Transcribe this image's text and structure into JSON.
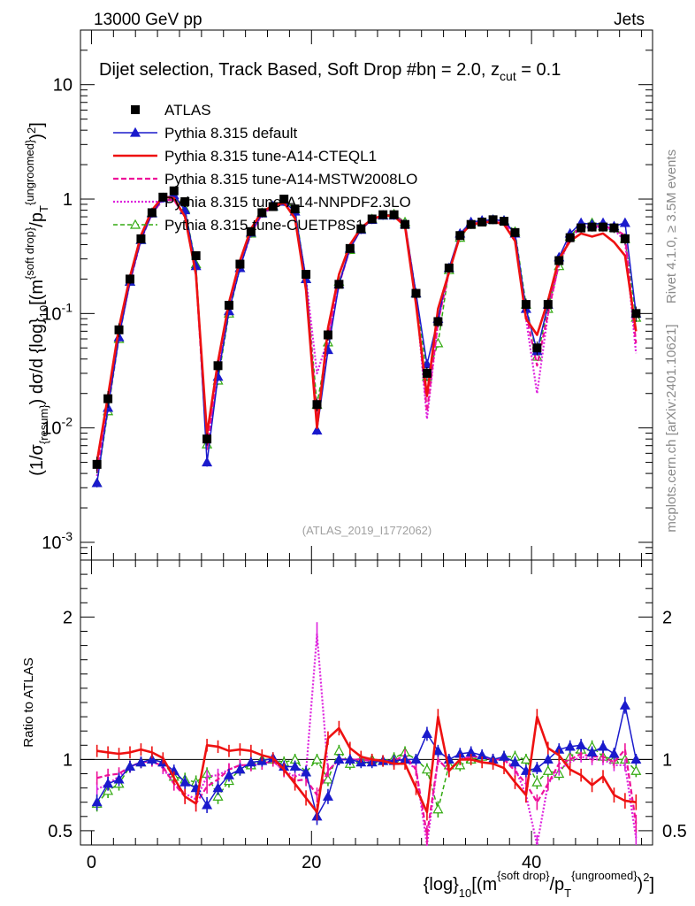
{
  "header": {
    "left": "13000 GeV pp",
    "right": "Jets"
  },
  "side_labels": {
    "rivet": "Rivet 4.1.0, ≥ 3.5M events",
    "mcplots": "mcplots.cern.ch [arXiv:2401.10621]"
  },
  "colors": {
    "atlas": "#000000",
    "default": "#1a1acc",
    "cteql1": "#ee1111",
    "mstw": "#ee1199",
    "nnpdf": "#dd22dd",
    "cuetp": "#33aa11"
  },
  "chart_data": [
    {
      "type": "line",
      "title": "Dijet selection, Track Based, Soft Drop #bη = 2.0, z_cut = 0.1",
      "title_text": "Dijet selection, Track Based, Soft Drop #b",
      "title_beta": "η = 2.0, z",
      "title_sub": "cut",
      "title_end": " = 0.1",
      "watermark": "(ATLAS_2019_I1772062)",
      "ylabel": "(1/σ{resum}) dσ/d {log}10[(m{soft drop}/pT{ungroomed})2]",
      "ylabel_parts": [
        "(1/σ",
        "{resum}",
        ") dσ/d {log}",
        "10",
        "[(m",
        "{soft drop}",
        "/p",
        "T",
        "{ungroomed}",
        ")",
        "2",
        "]"
      ],
      "yscale": "log",
      "ylim": [
        0.0007,
        30
      ],
      "yticks": [
        {
          "value": 0.001,
          "base": "10",
          "exp": "-3"
        },
        {
          "value": 0.01,
          "base": "10",
          "exp": "-2"
        },
        {
          "value": 0.1,
          "base": "10",
          "exp": "-1"
        },
        {
          "value": 1,
          "base": "1",
          "exp": ""
        },
        {
          "value": 10,
          "base": "10",
          "exp": ""
        }
      ],
      "xlim": [
        -1,
        51
      ],
      "legend": [
        {
          "key": "atlas",
          "label": "ATLAS"
        },
        {
          "key": "default",
          "label": "Pythia 8.315 default"
        },
        {
          "key": "cteql1",
          "label": "Pythia 8.315 tune-A14-CTEQL1"
        },
        {
          "key": "mstw",
          "label": "Pythia 8.315 tune-A14-MSTW2008LO"
        },
        {
          "key": "nnpdf",
          "label": "Pythia 8.315 tune-A14-NNPDF2.3LO"
        },
        {
          "key": "cuetp",
          "label": "Pythia 8.315 tune-CUETP8S1"
        }
      ],
      "x": [
        0.5,
        1.5,
        2.5,
        3.5,
        4.5,
        5.5,
        6.5,
        7.5,
        8.5,
        9.5,
        10.5,
        11.5,
        12.5,
        13.5,
        14.5,
        15.5,
        16.5,
        17.5,
        18.5,
        19.5,
        20.5,
        21.5,
        22.5,
        23.5,
        24.5,
        25.5,
        26.5,
        27.5,
        28.5,
        29.5,
        30.5,
        31.5,
        32.5,
        33.5,
        34.5,
        35.5,
        36.5,
        37.5,
        38.5,
        39.5,
        40.5,
        41.5,
        42.5,
        43.5,
        44.5,
        45.5,
        46.5,
        47.5,
        48.5,
        49.5
      ],
      "atlas": [
        0.0048,
        0.018,
        0.072,
        0.2,
        0.45,
        0.76,
        1.04,
        1.18,
        0.95,
        0.32,
        0.008,
        0.035,
        0.118,
        0.27,
        0.52,
        0.76,
        0.86,
        1.0,
        0.82,
        0.22,
        0.016,
        0.065,
        0.18,
        0.37,
        0.55,
        0.67,
        0.73,
        0.73,
        0.6,
        0.15,
        0.03,
        0.085,
        0.25,
        0.48,
        0.6,
        0.63,
        0.66,
        0.64,
        0.51,
        0.12,
        0.05,
        0.12,
        0.29,
        0.46,
        0.56,
        0.57,
        0.57,
        0.56,
        0.45,
        0.1
      ],
      "atlas_err": [
        0.0008,
        0.003,
        0.01,
        0.02,
        0.04,
        0.06,
        0.08,
        0.09,
        0.07,
        0.03,
        0.001,
        0.004,
        0.012,
        0.025,
        0.045,
        0.06,
        0.07,
        0.08,
        0.07,
        0.02,
        0.002,
        0.007,
        0.016,
        0.03,
        0.045,
        0.05,
        0.055,
        0.055,
        0.05,
        0.015,
        0.004,
        0.009,
        0.022,
        0.04,
        0.05,
        0.05,
        0.055,
        0.055,
        0.045,
        0.015,
        0.007,
        0.015,
        0.03,
        0.045,
        0.05,
        0.05,
        0.05,
        0.055,
        0.05,
        0.015
      ],
      "series": [
        {
          "key": "default",
          "marker": "triangle",
          "values": [
            0.0033,
            0.015,
            0.062,
            0.19,
            0.44,
            0.75,
            1.02,
            1.08,
            0.8,
            0.26,
            0.005,
            0.028,
            0.105,
            0.25,
            0.51,
            0.75,
            0.87,
            0.95,
            0.78,
            0.2,
            0.0095,
            0.048,
            0.18,
            0.37,
            0.54,
            0.66,
            0.72,
            0.72,
            0.6,
            0.15,
            0.036,
            0.09,
            0.25,
            0.5,
            0.63,
            0.65,
            0.66,
            0.65,
            0.5,
            0.11,
            0.047,
            0.12,
            0.31,
            0.5,
            0.62,
            0.6,
            0.62,
            0.58,
            0.62,
            0.1
          ]
        },
        {
          "key": "cteql1",
          "marker": "none",
          "values": [
            0.0051,
            0.019,
            0.075,
            0.21,
            0.48,
            0.8,
            1.05,
            1.02,
            0.7,
            0.22,
            0.0088,
            0.038,
            0.125,
            0.29,
            0.55,
            0.78,
            0.87,
            0.93,
            0.68,
            0.16,
            0.01,
            0.075,
            0.22,
            0.4,
            0.56,
            0.67,
            0.72,
            0.71,
            0.58,
            0.12,
            0.019,
            0.11,
            0.23,
            0.48,
            0.6,
            0.62,
            0.64,
            0.6,
            0.43,
            0.09,
            0.065,
            0.13,
            0.3,
            0.43,
            0.5,
            0.47,
            0.5,
            0.42,
            0.32,
            0.07
          ]
        },
        {
          "key": "mstw",
          "marker": "none",
          "values": [
            0.0042,
            0.016,
            0.065,
            0.19,
            0.44,
            0.75,
            0.99,
            0.98,
            0.7,
            0.22,
            0.0065,
            0.03,
            0.11,
            0.26,
            0.5,
            0.74,
            0.85,
            0.92,
            0.7,
            0.19,
            0.012,
            0.06,
            0.18,
            0.37,
            0.55,
            0.66,
            0.72,
            0.72,
            0.62,
            0.14,
            0.014,
            0.085,
            0.23,
            0.48,
            0.61,
            0.64,
            0.66,
            0.64,
            0.47,
            0.1,
            0.035,
            0.1,
            0.28,
            0.46,
            0.58,
            0.58,
            0.58,
            0.55,
            0.48,
            0.055
          ]
        },
        {
          "key": "nnpdf",
          "marker": "none",
          "values": [
            0.0038,
            0.015,
            0.063,
            0.19,
            0.44,
            0.75,
            0.98,
            0.98,
            0.72,
            0.23,
            0.007,
            0.031,
            0.11,
            0.26,
            0.5,
            0.74,
            0.85,
            0.92,
            0.72,
            0.2,
            0.03,
            0.06,
            0.18,
            0.37,
            0.55,
            0.67,
            0.72,
            0.72,
            0.6,
            0.14,
            0.012,
            0.085,
            0.23,
            0.48,
            0.61,
            0.64,
            0.66,
            0.64,
            0.48,
            0.09,
            0.02,
            0.1,
            0.27,
            0.45,
            0.57,
            0.57,
            0.57,
            0.54,
            0.43,
            0.045
          ]
        },
        {
          "key": "cuetp",
          "marker": "triangle-open",
          "values": [
            0.0033,
            0.014,
            0.06,
            0.19,
            0.44,
            0.76,
            1.02,
            1.04,
            0.82,
            0.27,
            0.0072,
            0.026,
            0.1,
            0.25,
            0.5,
            0.76,
            0.86,
            0.98,
            0.82,
            0.2,
            0.016,
            0.056,
            0.19,
            0.36,
            0.55,
            0.67,
            0.72,
            0.74,
            0.63,
            0.15,
            0.028,
            0.055,
            0.24,
            0.46,
            0.6,
            0.64,
            0.66,
            0.65,
            0.52,
            0.12,
            0.042,
            0.11,
            0.26,
            0.47,
            0.6,
            0.62,
            0.58,
            0.56,
            0.45,
            0.092
          ]
        }
      ]
    },
    {
      "type": "line",
      "ylabel": "Ratio to ATLAS",
      "ylim": [
        0.4,
        2.4
      ],
      "yticks": [
        {
          "value": 0.5,
          "label": "0.5"
        },
        {
          "value": 1,
          "label": "1"
        },
        {
          "value": 2,
          "label": "2"
        }
      ],
      "xlabel": "{log}10[(m{soft drop}/pT{ungroomed})2]",
      "xlabel_parts": [
        "{log}",
        "10",
        "[(m",
        "{soft drop}",
        "/p",
        "T",
        "{ungroomed}",
        ")",
        "2",
        "]"
      ],
      "xticks": [
        {
          "value": 0,
          "label": "0"
        },
        {
          "value": 20,
          "label": "20"
        },
        {
          "value": 40,
          "label": "40"
        }
      ],
      "xlim": [
        -1,
        51
      ],
      "reference": 1,
      "x": [
        0.5,
        1.5,
        2.5,
        3.5,
        4.5,
        5.5,
        6.5,
        7.5,
        8.5,
        9.5,
        10.5,
        11.5,
        12.5,
        13.5,
        14.5,
        15.5,
        16.5,
        17.5,
        18.5,
        19.5,
        20.5,
        21.5,
        22.5,
        23.5,
        24.5,
        25.5,
        26.5,
        27.5,
        28.5,
        29.5,
        30.5,
        31.5,
        32.5,
        33.5,
        34.5,
        35.5,
        36.5,
        37.5,
        38.5,
        39.5,
        40.5,
        41.5,
        42.5,
        43.5,
        44.5,
        45.5,
        46.5,
        47.5,
        48.5,
        49.5
      ],
      "series": [
        {
          "key": "default",
          "marker": "triangle",
          "values": [
            0.7,
            0.83,
            0.86,
            0.95,
            0.98,
            1.0,
            0.98,
            0.92,
            0.84,
            0.8,
            0.68,
            0.8,
            0.89,
            0.93,
            0.98,
            0.99,
            1.01,
            0.95,
            0.95,
            0.91,
            0.6,
            0.74,
            1.0,
            1.0,
            0.98,
            0.98,
            0.99,
            0.99,
            1.0,
            1.0,
            1.18,
            1.06,
            1.0,
            1.04,
            1.05,
            1.03,
            1.0,
            1.02,
            0.98,
            0.92,
            0.94,
            1.0,
            1.07,
            1.09,
            1.1,
            1.05,
            1.09,
            1.04,
            1.38,
            1.0
          ]
        },
        {
          "key": "cteql1",
          "marker": "none",
          "values": [
            1.06,
            1.05,
            1.04,
            1.05,
            1.07,
            1.05,
            1.01,
            0.87,
            0.74,
            0.69,
            1.1,
            1.09,
            1.06,
            1.07,
            1.06,
            1.03,
            1.01,
            0.93,
            0.83,
            0.73,
            0.63,
            1.15,
            1.22,
            1.08,
            1.02,
            1.0,
            0.99,
            0.97,
            0.97,
            0.8,
            0.63,
            1.3,
            0.92,
            1.0,
            1.0,
            0.98,
            0.97,
            0.94,
            0.84,
            0.75,
            1.3,
            1.08,
            1.03,
            0.93,
            0.89,
            0.82,
            0.88,
            0.75,
            0.71,
            0.7
          ]
        },
        {
          "key": "mstw",
          "marker": "none",
          "values": [
            0.87,
            0.89,
            0.9,
            0.95,
            0.98,
            0.99,
            0.95,
            0.83,
            0.74,
            0.69,
            0.81,
            0.86,
            0.93,
            0.96,
            0.96,
            0.97,
            0.99,
            0.92,
            0.85,
            0.86,
            0.75,
            0.92,
            1.0,
            1.0,
            1.0,
            0.99,
            0.99,
            0.99,
            1.03,
            0.93,
            0.47,
            1.0,
            0.92,
            1.0,
            1.02,
            1.02,
            1.0,
            1.0,
            0.92,
            0.83,
            0.7,
            0.83,
            0.97,
            1.0,
            1.04,
            1.02,
            1.02,
            0.98,
            1.07,
            0.55
          ]
        },
        {
          "key": "nnpdf",
          "marker": "none",
          "values": [
            0.79,
            0.83,
            0.88,
            0.95,
            0.98,
            0.99,
            0.94,
            0.83,
            0.76,
            0.72,
            0.88,
            0.89,
            0.93,
            0.96,
            0.96,
            0.97,
            0.99,
            0.92,
            0.88,
            0.91,
            1.88,
            0.92,
            1.0,
            1.0,
            1.0,
            1.0,
            0.99,
            0.99,
            1.0,
            0.93,
            0.4,
            1.0,
            0.92,
            1.0,
            1.02,
            1.02,
            1.0,
            1.0,
            0.94,
            0.75,
            0.4,
            0.83,
            0.93,
            0.98,
            1.02,
            1.0,
            1.0,
            0.96,
            0.96,
            0.45
          ]
        },
        {
          "key": "cuetp",
          "marker": "triangle-open",
          "values": [
            0.69,
            0.78,
            0.83,
            0.95,
            0.98,
            1.0,
            0.98,
            0.88,
            0.86,
            0.84,
            0.9,
            0.74,
            0.85,
            0.93,
            0.96,
            1.0,
            1.0,
            0.98,
            1.0,
            0.91,
            1.0,
            0.86,
            1.06,
            0.97,
            1.0,
            1.0,
            0.99,
            1.01,
            1.05,
            1.0,
            0.93,
            0.65,
            0.96,
            0.96,
            1.0,
            1.02,
            1.0,
            1.02,
            1.02,
            1.0,
            0.84,
            0.92,
            0.9,
            1.02,
            1.07,
            1.09,
            1.02,
            1.0,
            1.0,
            0.92
          ]
        }
      ]
    }
  ]
}
